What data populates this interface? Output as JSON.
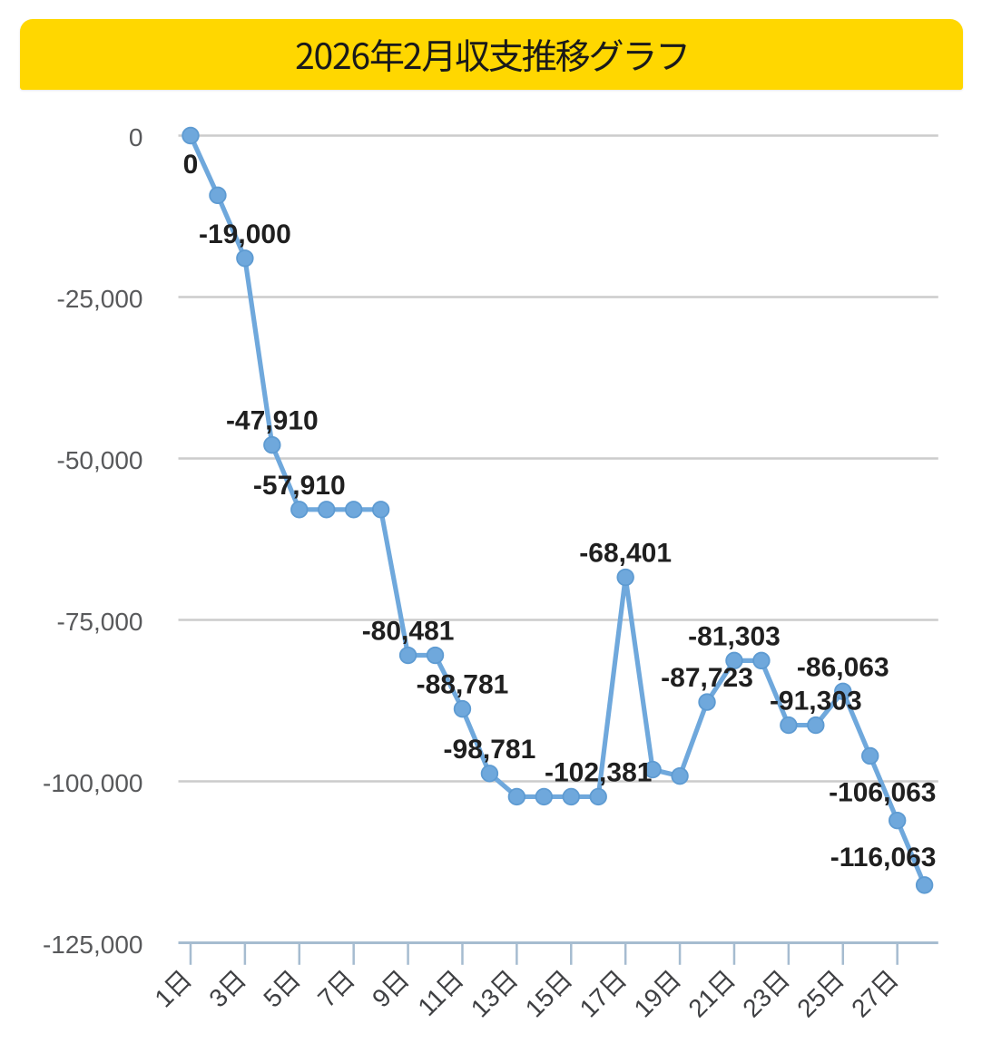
{
  "header": {
    "title": "2026年2月収支推移グラフ",
    "bg_color": "#FFD700",
    "text_color": "#1A1A1A"
  },
  "chart_data": {
    "type": "line",
    "title": "2026年2月収支推移グラフ",
    "x": [
      1,
      2,
      3,
      4,
      5,
      6,
      7,
      8,
      9,
      10,
      11,
      12,
      13,
      14,
      15,
      16,
      17,
      18,
      19,
      20,
      21,
      22,
      23,
      24,
      25,
      26,
      27,
      28
    ],
    "x_tick_labels": [
      "1日",
      "3日",
      "5日",
      "7日",
      "9日",
      "11日",
      "13日",
      "15日",
      "17日",
      "19日",
      "21日",
      "23日",
      "25日",
      "27日"
    ],
    "y_tick_labels": [
      "0",
      "-25,000",
      "-50,000",
      "-75,000",
      "-100,000",
      "-125,000"
    ],
    "ylim": [
      -125000,
      0
    ],
    "y_gridline_step": 25000,
    "grid": true,
    "legend": false,
    "values": [
      0,
      -9250,
      -19000,
      -47910,
      -57910,
      -57910,
      -57910,
      -57910,
      -80481,
      -80481,
      -88781,
      -98781,
      -102381,
      -102381,
      -102381,
      -102381,
      -68401,
      -98181,
      -99181,
      -87723,
      -81303,
      -81303,
      -91303,
      -91303,
      -86063,
      -96063,
      -106063,
      -116063
    ],
    "data_labels": [
      {
        "x": 1,
        "text": "0",
        "position": "below"
      },
      {
        "x": 3,
        "text": "-19,000",
        "position": "above"
      },
      {
        "x": 4,
        "text": "-47,910",
        "position": "above"
      },
      {
        "x": 5,
        "text": "-57,910",
        "position": "above"
      },
      {
        "x": 9,
        "text": "-80,481",
        "position": "above"
      },
      {
        "x": 11,
        "text": "-88,781",
        "position": "above"
      },
      {
        "x": 12,
        "text": "-98,781",
        "position": "above"
      },
      {
        "x": 16,
        "text": "-102,381",
        "position": "above"
      },
      {
        "x": 17,
        "text": "-68,401",
        "position": "above"
      },
      {
        "x": 20,
        "text": "-87,723",
        "position": "above"
      },
      {
        "x": 21,
        "text": "-81,303",
        "position": "above"
      },
      {
        "x": 24,
        "text": "-91,303",
        "position": "above"
      },
      {
        "x": 25,
        "text": "-86,063",
        "position": "above"
      },
      {
        "x": 27,
        "text": "-106,063",
        "position": "above"
      },
      {
        "x": 28,
        "text": "-116,063",
        "position": "above"
      }
    ],
    "line_color": "#6FA8DC",
    "marker_color": "#6FA8DC",
    "marker_edge_color": "#5E9BD2",
    "gridline_color": "#CCCCCC",
    "axis_line_color": "#A6BCD0",
    "y_tick_label_color": "#58595B",
    "x_tick_label_color": "#3F4043",
    "data_label_color": "#1F1F1F",
    "background_color": "#FFFFFF"
  }
}
